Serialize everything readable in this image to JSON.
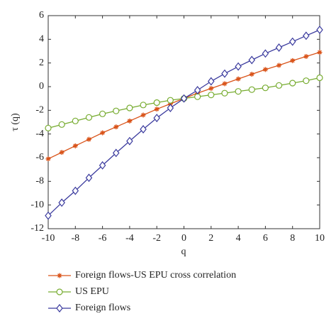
{
  "chart_data": {
    "type": "line",
    "xlabel": "q",
    "ylabel": "τ (q)",
    "x": [
      -10,
      -9,
      -8,
      -7,
      -6,
      -5,
      -4,
      -3,
      -2,
      -1,
      0,
      1,
      2,
      3,
      4,
      5,
      6,
      7,
      8,
      9,
      10
    ],
    "series": [
      {
        "name": "Foreign flows-US EPU cross correlation",
        "color": "#d95319",
        "marker": "asterisk",
        "values": [
          -6.1,
          -5.55,
          -5.0,
          -4.45,
          -3.9,
          -3.4,
          -2.9,
          -2.4,
          -1.9,
          -1.45,
          -1.0,
          -0.55,
          -0.15,
          0.25,
          0.65,
          1.05,
          1.45,
          1.8,
          2.2,
          2.55,
          2.9
        ]
      },
      {
        "name": "US EPU",
        "color": "#77ac30",
        "marker": "circle",
        "values": [
          -3.5,
          -3.2,
          -2.9,
          -2.6,
          -2.3,
          -2.05,
          -1.8,
          -1.55,
          -1.35,
          -1.15,
          -1.0,
          -0.85,
          -0.7,
          -0.55,
          -0.4,
          -0.25,
          -0.1,
          0.1,
          0.3,
          0.5,
          0.75
        ]
      },
      {
        "name": "Foreign flows",
        "color": "#3b3b9e",
        "marker": "diamond",
        "values": [
          -10.9,
          -9.8,
          -8.8,
          -7.7,
          -6.65,
          -5.6,
          -4.6,
          -3.6,
          -2.65,
          -1.8,
          -1.0,
          -0.3,
          0.45,
          1.1,
          1.7,
          2.25,
          2.8,
          3.3,
          3.8,
          4.3,
          4.8
        ]
      }
    ],
    "xlim": [
      -10,
      10
    ],
    "xticks": [
      -10,
      -8,
      -6,
      -4,
      -2,
      0,
      2,
      4,
      6,
      8,
      10
    ],
    "ylim": [
      -12,
      6
    ],
    "yticks": [
      -12,
      -10,
      -8,
      -6,
      -4,
      -2,
      0,
      2,
      4,
      6
    ],
    "grid": false,
    "legend": "bottom"
  }
}
